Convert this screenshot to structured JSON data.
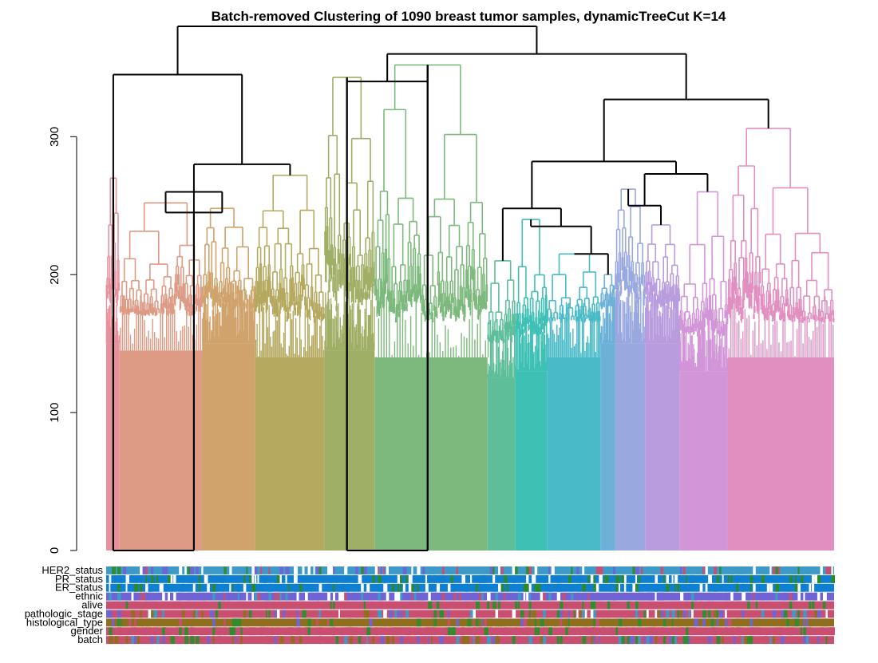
{
  "chart_data": {
    "type": "dendrogram",
    "title": "Batch-removed Clustering of 1090 breast tumor samples, dynamicTreeCut K=14",
    "xlabel": "",
    "ylabel": "",
    "ylim": [
      0,
      380
    ],
    "y_ticks": [
      {
        "value": 0,
        "label": "0"
      },
      {
        "value": 100,
        "label": "100"
      },
      {
        "value": 200,
        "label": "200"
      },
      {
        "value": 300,
        "label": "300"
      }
    ],
    "n_samples": 1090,
    "n_clusters": 14,
    "clusters": [
      {
        "id": 1,
        "color": "#E8909E",
        "leaf_start": 0,
        "leaf_end": 20,
        "height": 270,
        "leaf_floor": 150
      },
      {
        "id": 2,
        "color": "#DD9A84",
        "leaf_start": 20,
        "leaf_end": 144,
        "height": 252,
        "leaf_floor": 145
      },
      {
        "id": 3,
        "color": "#D0A36C",
        "leaf_start": 144,
        "leaf_end": 223,
        "height": 248,
        "leaf_floor": 150
      },
      {
        "id": 4,
        "color": "#B5A95F",
        "leaf_start": 223,
        "leaf_end": 327,
        "height": 272,
        "leaf_floor": 140
      },
      {
        "id": 5,
        "color": "#A0AF66",
        "leaf_start": 327,
        "leaf_end": 402,
        "height": 343,
        "leaf_floor": 145
      },
      {
        "id": 6,
        "color": "#7DB97C",
        "leaf_start": 402,
        "leaf_end": 571,
        "height": 352,
        "leaf_floor": 140
      },
      {
        "id": 7,
        "color": "#5EBE9A",
        "leaf_start": 571,
        "leaf_end": 613,
        "height": 210,
        "leaf_floor": 125
      },
      {
        "id": 8,
        "color": "#3FC0B4",
        "leaf_start": 613,
        "leaf_end": 660,
        "height": 240,
        "leaf_floor": 130
      },
      {
        "id": 9,
        "color": "#48BAC8",
        "leaf_start": 660,
        "leaf_end": 740,
        "height": 215,
        "leaf_floor": 140
      },
      {
        "id": 10,
        "color": "#6DB0D8",
        "leaf_start": 740,
        "leaf_end": 762,
        "height": 200,
        "leaf_floor": 150
      },
      {
        "id": 11,
        "color": "#9AA8E0",
        "leaf_start": 762,
        "leaf_end": 807,
        "height": 262,
        "leaf_floor": 150
      },
      {
        "id": 12,
        "color": "#B89CDE",
        "leaf_start": 807,
        "leaf_end": 859,
        "height": 236,
        "leaf_floor": 150
      },
      {
        "id": 13,
        "color": "#D295D8",
        "leaf_start": 859,
        "leaf_end": 931,
        "height": 260,
        "leaf_floor": 130
      },
      {
        "id": 14,
        "color": "#E08FC0",
        "leaf_start": 931,
        "leaf_end": 1090,
        "height": 306,
        "leaf_floor": 140
      }
    ],
    "annotation_rows": [
      {
        "label": "HER2_status",
        "palette": [
          "#3D9AC8",
          "#6F63D6",
          "#2F8C2F",
          "#C94F70",
          "#FFFFFF"
        ]
      },
      {
        "label": "PR_status",
        "palette": [
          "#0F7FD1",
          "#0F7FD1",
          "#2C8A26",
          "#FFFFFF"
        ]
      },
      {
        "label": "ER_status",
        "palette": [
          "#0F7FD1",
          "#0F7FD1",
          "#2C8A26",
          "#FFFFFF"
        ]
      },
      {
        "label": "ethnic",
        "palette": [
          "#6F63D6",
          "#6F63D6",
          "#FFFFFF",
          "#C94F70",
          "#3D9AC8"
        ]
      },
      {
        "label": "alive",
        "palette": [
          "#C94F70",
          "#C94F70",
          "#C94F70",
          "#2F8C2F"
        ]
      },
      {
        "label": "pathologic_stage",
        "palette": [
          "#C94F70",
          "#2F8C2F",
          "#3D9AC8",
          "#8F6E1E",
          "#6F63D6",
          "#FFFFFF"
        ]
      },
      {
        "label": "histological_type",
        "palette": [
          "#8F6E1E",
          "#8F6E1E",
          "#8F6E1E",
          "#C94F70",
          "#6F63D6",
          "#2F8C2F"
        ]
      },
      {
        "label": "gender",
        "palette": [
          "#C94F70",
          "#C94F70",
          "#C94F70",
          "#C94F70",
          "#2F8C2F"
        ]
      },
      {
        "label": "batch",
        "palette": [
          "#C94F70",
          "#6F63D6",
          "#3D9AC8",
          "#2F8C2F",
          "#8F6E1E"
        ]
      }
    ]
  }
}
